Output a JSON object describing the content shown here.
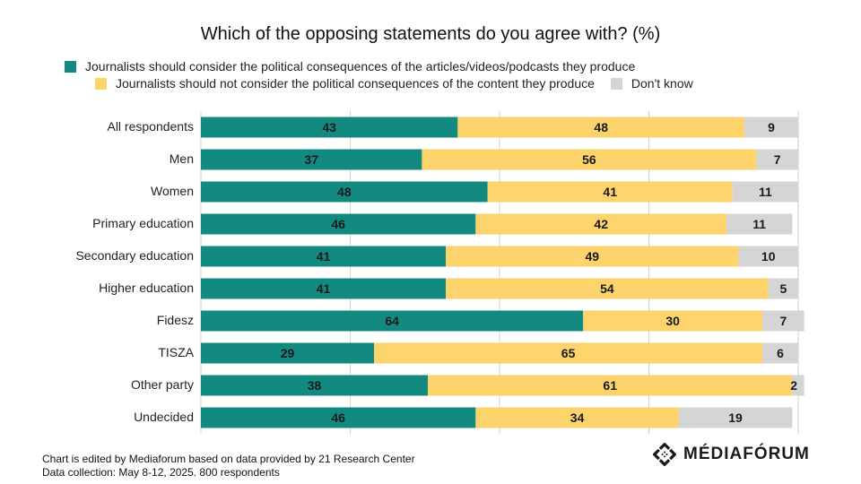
{
  "colors": {
    "consider": "#138a80",
    "not_consider": "#fdd36c",
    "dont_know": "#d5d5d5",
    "grid": "#d0d0d0"
  },
  "chart_data": {
    "type": "bar",
    "orientation": "horizontal",
    "stacked": true,
    "title": "Which of the opposing statements do you agree with? (%)",
    "categories": [
      "All respondents",
      "Men",
      "Women",
      "Primary education",
      "Secondary education",
      "Higher education",
      "Fidesz",
      "TISZA",
      "Other party",
      "Undecided"
    ],
    "series": [
      {
        "name": "Journalists should consider the political consequences of the articles/videos/podcasts they produce",
        "color": "#138a80",
        "values": [
          43,
          37,
          48,
          46,
          41,
          41,
          64,
          29,
          38,
          46
        ]
      },
      {
        "name": "Journalists should not consider the political consequences of the content they produce",
        "color": "#fdd36c",
        "values": [
          48,
          56,
          41,
          42,
          49,
          54,
          30,
          65,
          61,
          34
        ]
      },
      {
        "name": "Don't know",
        "color": "#d5d5d5",
        "values": [
          9,
          7,
          11,
          11,
          10,
          5,
          7,
          6,
          2,
          19
        ]
      }
    ],
    "xlim": [
      0,
      100
    ],
    "grid": true,
    "legend_position": "top"
  },
  "footer": {
    "line1": "Chart is edited by Mediaforum based on data provided by 21 Research Center",
    "line2": "Data collection: May 8-12, 2025. 800 respondents"
  },
  "brand": {
    "name": "MÉDIAFÓRUM",
    "icon": "mediaforum-logo-icon"
  }
}
